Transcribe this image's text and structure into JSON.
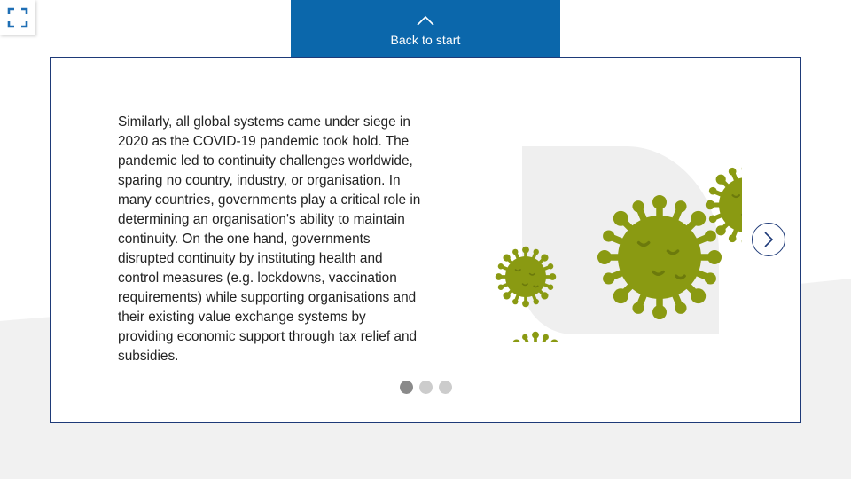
{
  "header": {
    "back_label": "Back to start",
    "back_icon": "chevron-up-icon",
    "fullscreen_icon": "fullscreen-icon"
  },
  "slide": {
    "body_text": "Similarly, all global systems came under siege in 2020 as the COVID-19 pandemic took hold. The pandemic led to continuity challenges worldwide, sparing no country, industry, or organisation. In many countries, governments play a critical role in determining an organisation's ability to maintain continuity. On the one hand, governments disrupted continuity by instituting health and control measures (e.g. lockdowns, vaccination requirements) while supporting organisations and their existing value exchange systems by providing economic support through tax relief and subsidies.",
    "illustration": "virus-illustration",
    "next_icon": "chevron-right-icon"
  },
  "pagination": {
    "count": 3,
    "active_index": 0
  },
  "colors": {
    "brand_blue": "#0b67ab",
    "card_border": "#1e3a78",
    "virus_green": "#8a9a12",
    "virus_dark": "#6c7a0c",
    "shape_gray": "#efefef",
    "dot_active": "#8a8a8a",
    "dot_inactive": "#cccccc"
  }
}
